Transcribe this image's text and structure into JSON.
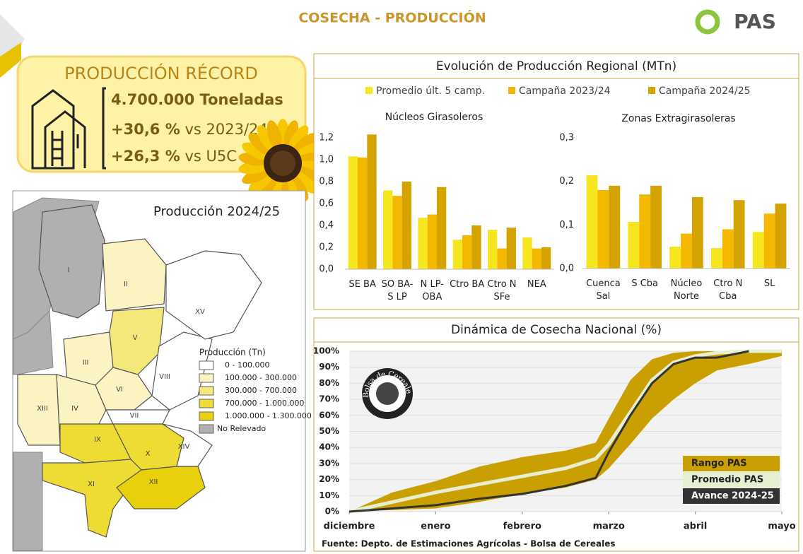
{
  "header": {
    "title": "COSECHA - PRODUCCIÓN",
    "logo": "PAS"
  },
  "record": {
    "title": "PRODUCCIÓN RÉCORD",
    "total": "4.700.000 Toneladas",
    "changes": [
      {
        "value": "+30,6 %",
        "label": "vs 2023/24"
      },
      {
        "value": "+26,3 %",
        "label": "vs U5C"
      }
    ]
  },
  "map": {
    "title": "Producción 2024/25",
    "legend_title": "Producción (Tn)",
    "legend": [
      {
        "label": "0 - 100.000",
        "color": "#ffffff"
      },
      {
        "label": "100.000 - 300.000",
        "color": "#fbf3c2"
      },
      {
        "label": "300.000 - 700.000",
        "color": "#f5e87a"
      },
      {
        "label": "700.000 - 1.000.000",
        "color": "#eedc34"
      },
      {
        "label": "1.000.000 - 1.300.000",
        "color": "#e8d10a"
      },
      {
        "label": "No Relevado",
        "color": "#b0b0b0"
      }
    ],
    "regions": [
      {
        "name": "I",
        "color": "#b0b0b0"
      },
      {
        "name": "II",
        "color": "#fbf3c2"
      },
      {
        "name": "III",
        "color": "#fbf3c2"
      },
      {
        "name": "IV",
        "color": "#fbf3c2"
      },
      {
        "name": "V",
        "color": "#f5e87a"
      },
      {
        "name": "VI",
        "color": "#fbf3c2"
      },
      {
        "name": "VII",
        "color": "#ffffff"
      },
      {
        "name": "VIII",
        "color": "#ffffff"
      },
      {
        "name": "IX",
        "color": "#eedc34"
      },
      {
        "name": "X",
        "color": "#eedc34"
      },
      {
        "name": "XI",
        "color": "#eedc34"
      },
      {
        "name": "XII",
        "color": "#e8d10a"
      },
      {
        "name": "XIII",
        "color": "#fbf3c2"
      },
      {
        "name": "XIV",
        "color": "#ffffff"
      },
      {
        "name": "XV",
        "color": "#ffffff"
      }
    ]
  },
  "chart_data": [
    {
      "type": "bar",
      "title": "Evolución de Producción Regional (MTn)",
      "subtitle": "Núcleos Girasoleros",
      "categories": [
        "SE BA",
        "SO BA-\nS LP",
        "N LP-\nOBA",
        "Ctro BA",
        "Ctro N\nSFe",
        "NEA"
      ],
      "series": [
        {
          "name": "Promedio últ. 5 camp.",
          "color": "#f5e61e",
          "values": [
            1.03,
            0.72,
            0.47,
            0.27,
            0.36,
            0.29
          ]
        },
        {
          "name": "Campaña 2023/24",
          "color": "#f5b800",
          "values": [
            1.02,
            0.67,
            0.5,
            0.31,
            0.19,
            0.19
          ]
        },
        {
          "name": "Campaña 2024/25",
          "color": "#d4a300",
          "values": [
            1.23,
            0.8,
            0.75,
            0.4,
            0.38,
            0.2
          ]
        }
      ],
      "ylim": [
        0,
        1.24
      ],
      "yticks": [
        {
          "value": 0,
          "label": "0,0"
        },
        {
          "value": 0.2,
          "label": "0,2"
        },
        {
          "value": 0.4,
          "label": "0,4"
        },
        {
          "value": 0.6,
          "label": "0,6"
        },
        {
          "value": 0.8,
          "label": "0,8"
        },
        {
          "value": 1,
          "label": "1,0"
        },
        {
          "value": 1.2,
          "label": "1,2"
        }
      ]
    },
    {
      "type": "bar",
      "subtitle": "Zonas Extragirasoleras",
      "categories": [
        "Cuenca\nSal",
        "S Cba",
        "Núcleo\nNorte",
        "Ctro N\nCba",
        "SL"
      ],
      "series": [
        {
          "color": "#f5e61e",
          "values": [
            0.214,
            0.107,
            0.05,
            0.047,
            0.084
          ]
        },
        {
          "color": "#f5b800",
          "values": [
            0.18,
            0.17,
            0.08,
            0.09,
            0.126
          ]
        },
        {
          "color": "#d4a300",
          "values": [
            0.19,
            0.19,
            0.164,
            0.157,
            0.149
          ]
        }
      ],
      "ylim": [
        0,
        0.3
      ],
      "yticks": [
        {
          "value": 0,
          "label": "0,0"
        },
        {
          "value": 0.1,
          "label": "0,1"
        },
        {
          "value": 0.2,
          "label": "0,2"
        },
        {
          "value": 0.3,
          "label": "0,3"
        }
      ]
    },
    {
      "type": "line",
      "title": "Dinámica de Cosecha Nacional (%)",
      "logo": "Bolsa de Cereales",
      "source": "Fuente: Depto. de Estimaciones Agrícolas - Bolsa de Cereales",
      "x": [
        0,
        0.5,
        1,
        1.5,
        2,
        2.5,
        2.85,
        3,
        3.25,
        3.5,
        3.75,
        4,
        4.25,
        4.62,
        5
      ],
      "series": [
        {
          "name": "Rango PAS",
          "color": "#c9a000",
          "values": [
            0,
            12,
            19,
            28,
            34,
            38,
            43,
            58,
            82,
            95,
            99,
            100,
            100,
            100,
            100
          ],
          "low": [
            0,
            1,
            2,
            6,
            11,
            15,
            20,
            27,
            42,
            58,
            70,
            80,
            88,
            92,
            97
          ]
        },
        {
          "name": "Promedio PAS",
          "color": "#e6efd2",
          "values": [
            0,
            6,
            12,
            17,
            22,
            27,
            33,
            42,
            62,
            82,
            93,
            97,
            99,
            100,
            100
          ]
        },
        {
          "name": "Avance 2024-25",
          "color": "#333333",
          "values": [
            0,
            2,
            4,
            8,
            11,
            16,
            21,
            37,
            60,
            80,
            92,
            96,
            96,
            100,
            null
          ]
        }
      ],
      "xlim": [
        0,
        5
      ],
      "xticks": [
        {
          "value": 0,
          "label": "diciembre"
        },
        {
          "value": 1,
          "label": "enero"
        },
        {
          "value": 2,
          "label": "febrero"
        },
        {
          "value": 3,
          "label": "marzo"
        },
        {
          "value": 4,
          "label": "abril"
        },
        {
          "value": 5,
          "label": "mayo"
        }
      ],
      "ylim": [
        0,
        100
      ],
      "yticks": [
        {
          "value": 0,
          "label": "0%"
        },
        {
          "value": 10,
          "label": "10%"
        },
        {
          "value": 20,
          "label": "20%"
        },
        {
          "value": 30,
          "label": "30%"
        },
        {
          "value": 40,
          "label": "40%"
        },
        {
          "value": 50,
          "label": "50%"
        },
        {
          "value": 60,
          "label": "60%"
        },
        {
          "value": 70,
          "label": "70%"
        },
        {
          "value": 80,
          "label": "80%"
        },
        {
          "value": 90,
          "label": "90%"
        },
        {
          "value": 100,
          "label": "100%"
        }
      ]
    }
  ]
}
